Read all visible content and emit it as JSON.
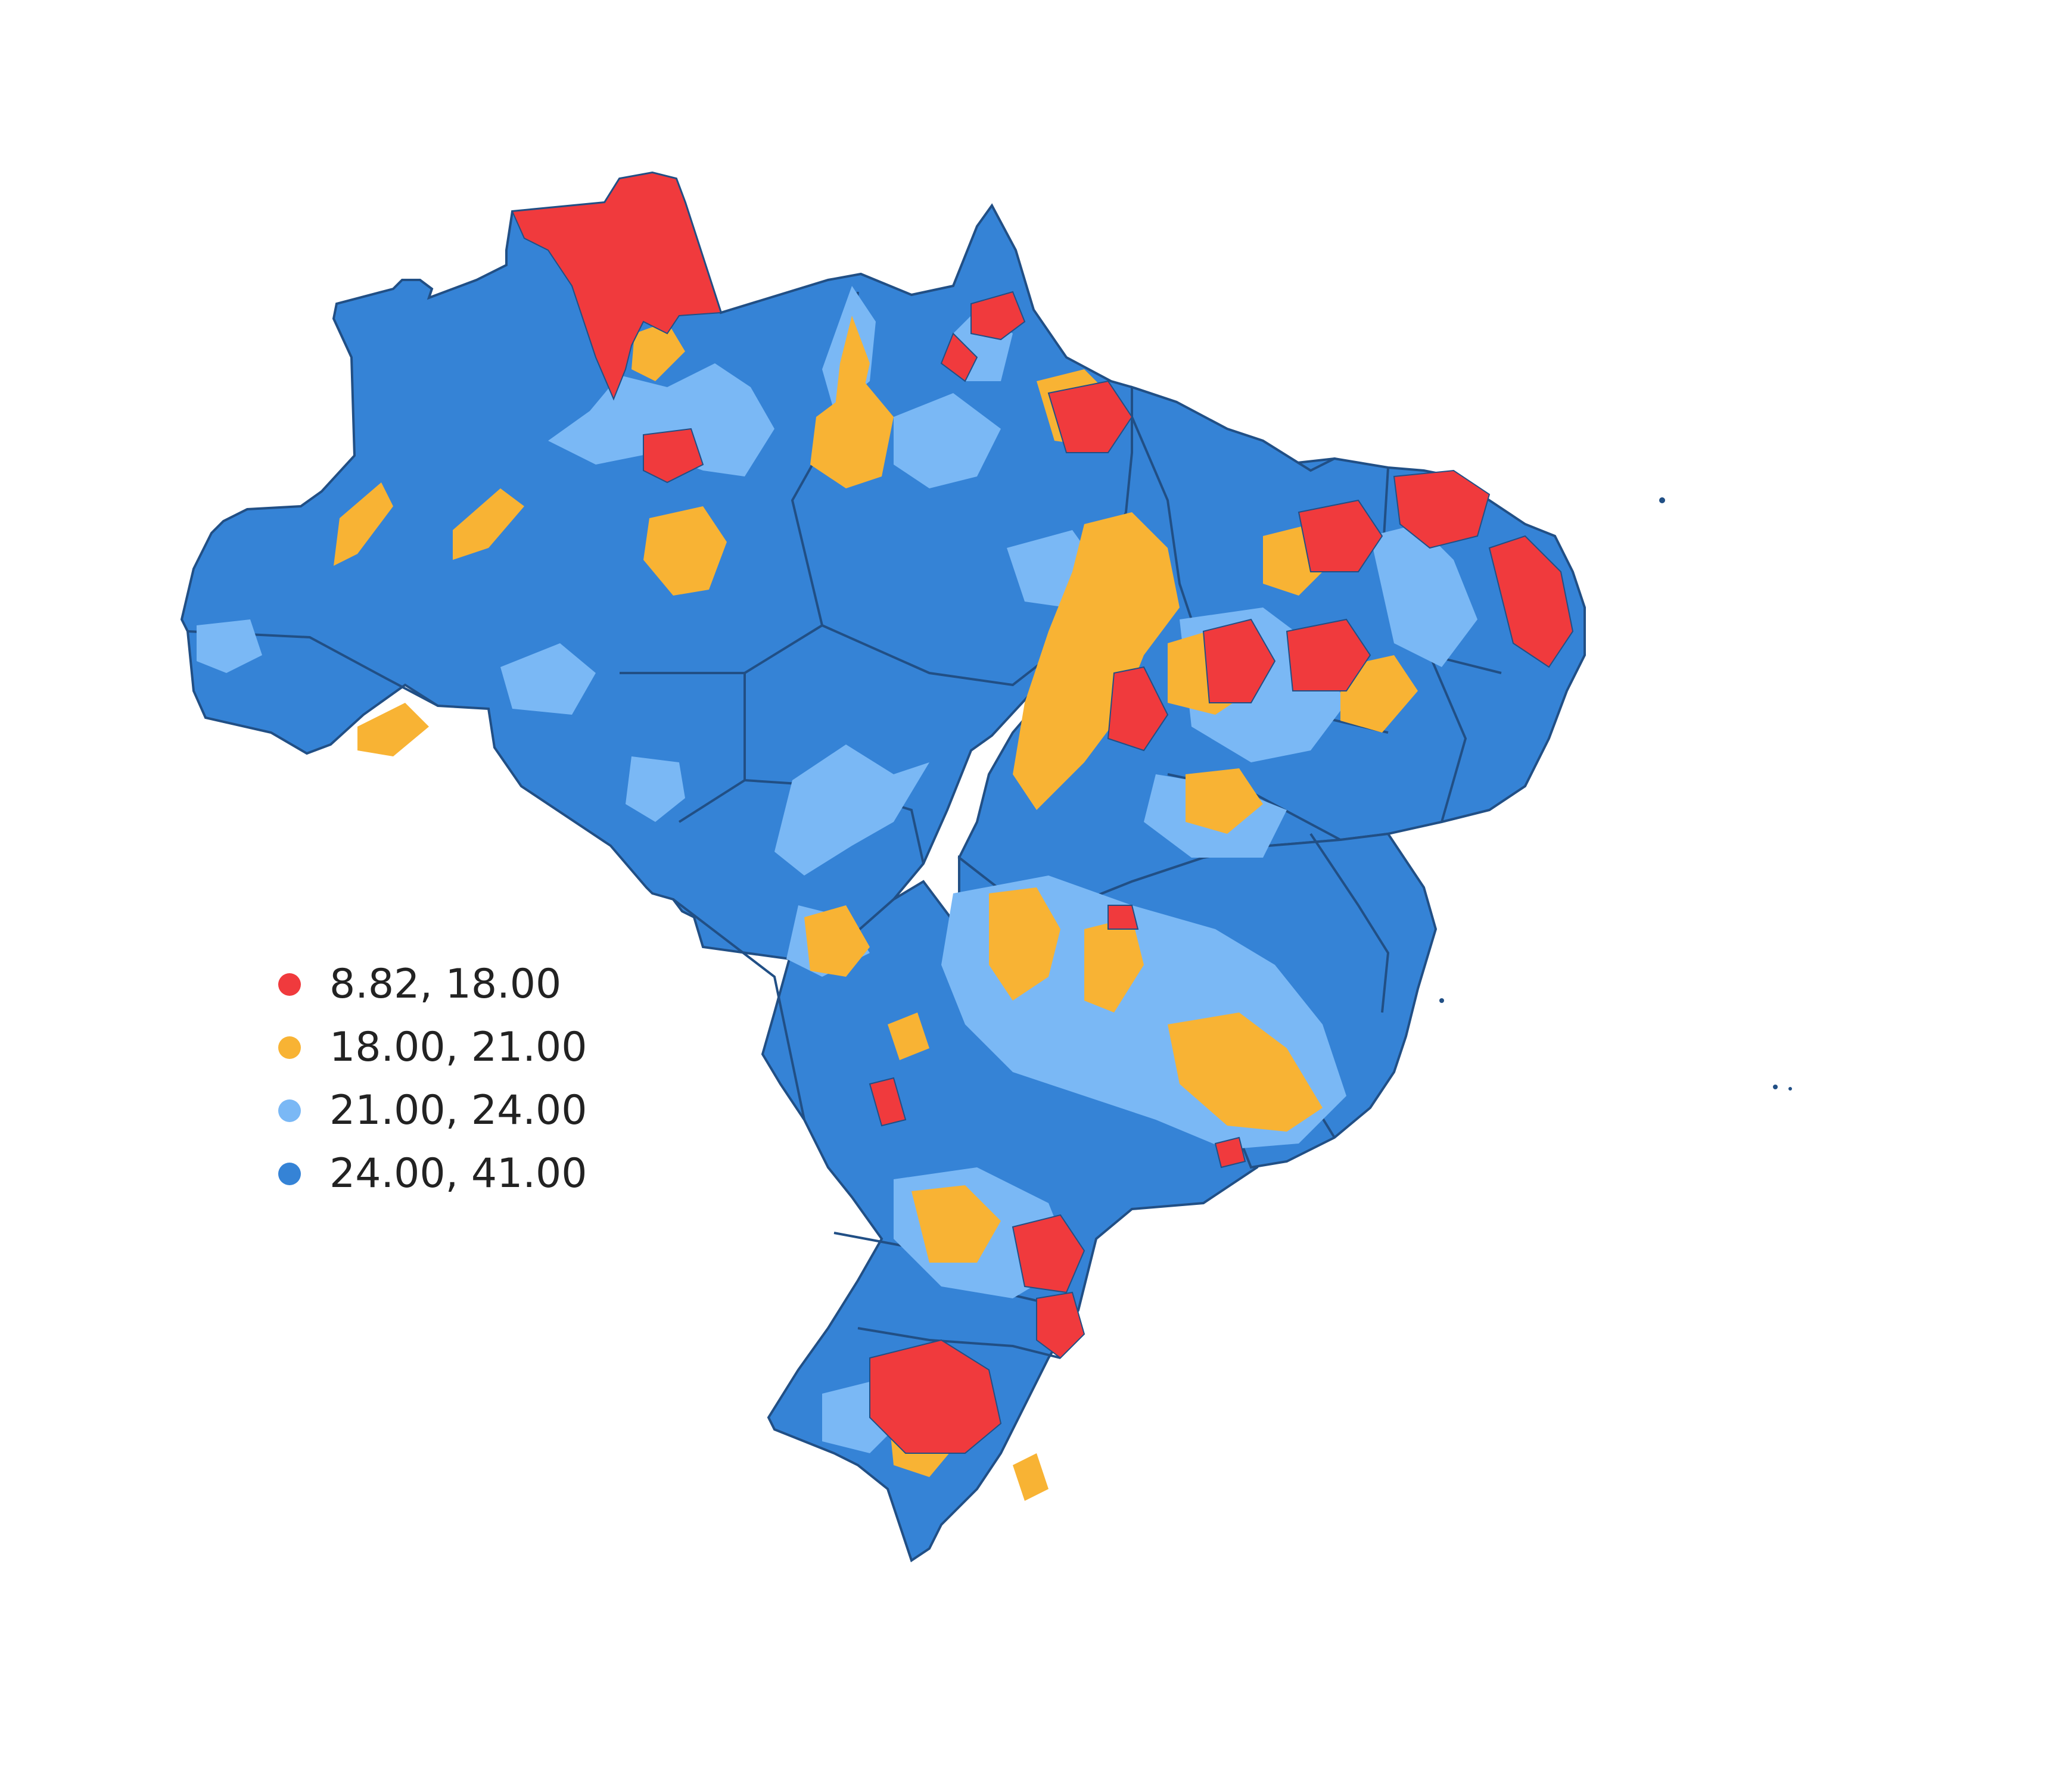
{
  "legend": {
    "items": [
      {
        "label": " 8.82, 18.00",
        "color": "#f03a3d"
      },
      {
        "label": "18.00, 21.00",
        "color": "#f8b334"
      },
      {
        "label": "21.00, 24.00",
        "color": "#7ab8f5"
      },
      {
        "label": "24.00, 41.00",
        "color": "#3583d6"
      }
    ]
  },
  "colors": {
    "red": "#f03a3d",
    "orange": "#f8b334",
    "light_blue": "#7ab8f5",
    "blue": "#3583d6",
    "border": "#214f85"
  }
}
